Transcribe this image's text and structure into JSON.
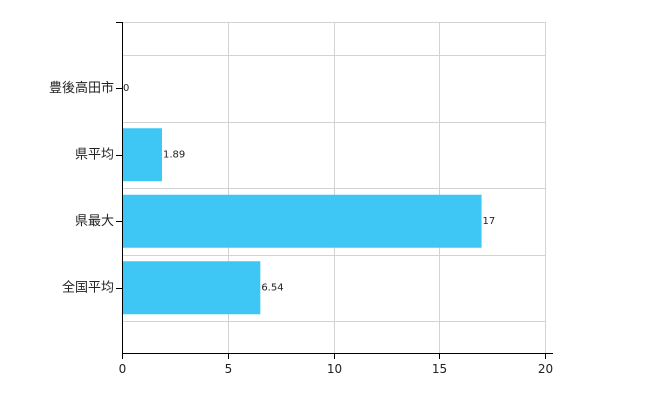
{
  "chart_data": {
    "type": "bar",
    "orientation": "horizontal",
    "categories": [
      "豊後高田市",
      "県平均",
      "県最大",
      "全国平均"
    ],
    "values": [
      0,
      1.89,
      17,
      6.54
    ],
    "value_labels": [
      "0",
      "1.89",
      "17",
      "6.54"
    ],
    "xlim": [
      0,
      20
    ],
    "x_ticks": [
      0,
      5,
      10,
      15,
      20
    ],
    "x_tick_labels": [
      "0",
      "5",
      "10",
      "15",
      "20"
    ],
    "grid": true,
    "legend": "none",
    "title": "",
    "xlabel": "",
    "ylabel": "",
    "bar_color": "#3ec6f5",
    "grid_color": "#d3d3d3",
    "axis_color": "#000000"
  }
}
